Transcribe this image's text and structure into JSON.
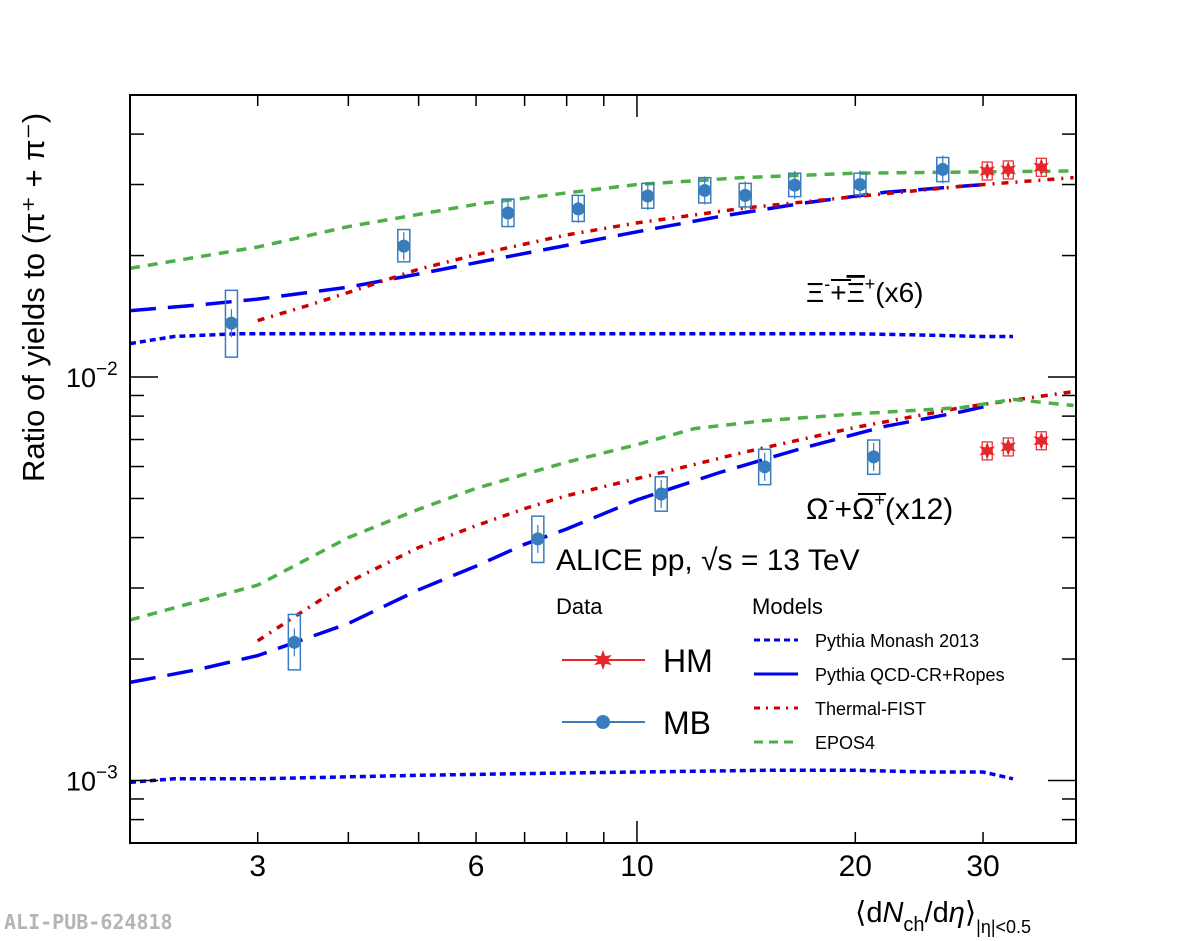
{
  "chart_data": {
    "type": "scatter",
    "title": "",
    "xlabel": "⟨dN_ch/dη⟩_|η|<0.5",
    "ylabel": "Ratio of yields to (π⁺ + π⁻)",
    "xscale": "log",
    "yscale": "log",
    "xlim": [
      2.0,
      40.3
    ],
    "ylim": [
      0.0007,
      0.05
    ],
    "grid": false,
    "x_ticks": [
      {
        "value": 3,
        "label": "3"
      },
      {
        "value": 6,
        "label": "6"
      },
      {
        "value": 10,
        "label": "10"
      },
      {
        "value": 20,
        "label": "20"
      },
      {
        "value": 30,
        "label": "30"
      }
    ],
    "x_minor_ticks": [
      4,
      5,
      7,
      8,
      9
    ],
    "y_ticks": [
      {
        "value": 0.01,
        "label": "10",
        "exp": "−2"
      },
      {
        "value": 0.001,
        "label": "10",
        "exp": "−3"
      }
    ],
    "y_minor_ticks": [
      0.0008,
      0.0009,
      0.002,
      0.003,
      0.004,
      0.005,
      0.006,
      0.007,
      0.008,
      0.009,
      0.02,
      0.03,
      0.04
    ],
    "annotations": {
      "experiment": "ALICE pp, √s = 13 TeV",
      "xi_label": {
        "base": "Ξ",
        "sup1": "-",
        "plus": "+",
        "bar": "Ξ",
        "sup2": "+",
        "scale": "(x6)"
      },
      "omega_label": {
        "base": "Ω",
        "sup1": "-",
        "plus": "+",
        "bar": "Ω",
        "sup2": "+",
        "scale": "(x12)"
      }
    },
    "legend": {
      "placement": "bottom-right",
      "data_header": "Data",
      "models_header": "Models",
      "data_entries": [
        {
          "name": "HM",
          "color": "#e8252a",
          "marker": "star"
        },
        {
          "name": "MB",
          "color": "#3a7dbf",
          "marker": "circle"
        }
      ],
      "model_entries": [
        {
          "name": "Pythia Monash 2013",
          "color": "#0000ee",
          "style": "short-dash"
        },
        {
          "name": "Pythia QCD-CR+Ropes",
          "color": "#0000ee",
          "style": "long-dash"
        },
        {
          "name": "Thermal-FIST",
          "color": "#cc0000",
          "style": "dash-dot"
        },
        {
          "name": "EPOS4",
          "color": "#4caf48",
          "style": "dash"
        }
      ]
    },
    "series": [
      {
        "name": "MB Ξ (x6)",
        "group": "xi",
        "color": "#3a7dbf",
        "marker": "circle",
        "x": [
          2.76,
          4.77,
          6.64,
          8.3,
          10.35,
          12.4,
          14.1,
          16.5,
          20.3,
          26.4
        ],
        "y": [
          0.0136,
          0.0211,
          0.0255,
          0.0261,
          0.0281,
          0.029,
          0.0282,
          0.0299,
          0.03,
          0.0327
        ],
        "syst_lo": [
          0.0112,
          0.0193,
          0.0236,
          0.0243,
          0.0262,
          0.027,
          0.0264,
          0.028,
          0.0283,
          0.0305
        ],
        "syst_hi": [
          0.0164,
          0.0232,
          0.0276,
          0.0282,
          0.0302,
          0.0312,
          0.0302,
          0.032,
          0.032,
          0.035
        ]
      },
      {
        "name": "HM Ξ (x6)",
        "group": "xi",
        "color": "#e8252a",
        "marker": "star",
        "x": [
          30.4,
          32.5,
          36.1
        ],
        "y": [
          0.0324,
          0.0326,
          0.0331
        ]
      },
      {
        "name": "MB Ω (x12)",
        "group": "omega",
        "color": "#3a7dbf",
        "marker": "circle",
        "x": [
          3.37,
          7.3,
          10.8,
          15.0,
          21.2
        ],
        "y": [
          0.0022,
          0.00397,
          0.00513,
          0.00599,
          0.00634
        ],
        "syst_lo": [
          0.00188,
          0.00347,
          0.00465,
          0.00541,
          0.00574
        ],
        "syst_hi": [
          0.00258,
          0.00452,
          0.00566,
          0.00662,
          0.00698
        ]
      },
      {
        "name": "HM Ω (x12)",
        "group": "omega",
        "color": "#e8252a",
        "marker": "star",
        "x": [
          30.4,
          32.5,
          36.1
        ],
        "y": [
          0.00656,
          0.00671,
          0.00695
        ]
      },
      {
        "name": "Pythia Monash 2013 Ξ",
        "model": "Pythia Monash 2013",
        "color": "#0000ee",
        "style": "short-dash",
        "x": [
          2.0,
          2.3,
          2.8,
          4,
          6,
          10,
          15,
          20,
          25,
          30,
          33
        ],
        "y": [
          0.0121,
          0.0126,
          0.0128,
          0.0128,
          0.0128,
          0.0128,
          0.0128,
          0.0128,
          0.0127,
          0.0126,
          0.0126
        ]
      },
      {
        "name": "Pythia QCD-CR+Ropes Ξ",
        "model": "Pythia QCD-CR+Ropes",
        "color": "#0000ee",
        "style": "long-dash",
        "x": [
          2.0,
          2.5,
          3.0,
          4.0,
          5.0,
          6.0,
          8.0,
          10,
          13,
          17,
          22,
          28,
          31
        ],
        "y": [
          0.0146,
          0.0151,
          0.0156,
          0.0167,
          0.018,
          0.0192,
          0.0212,
          0.0229,
          0.025,
          0.027,
          0.0287,
          0.0297,
          0.0301
        ]
      },
      {
        "name": "Thermal-FIST Ξ",
        "model": "Thermal-FIST",
        "color": "#cc0000",
        "style": "dash-dot",
        "x": [
          3.0,
          3.5,
          4.0,
          5.0,
          6.0,
          8.0,
          10,
          14,
          20,
          28,
          40
        ],
        "y": [
          0.0138,
          0.015,
          0.0162,
          0.0185,
          0.0201,
          0.0225,
          0.0241,
          0.0262,
          0.028,
          0.0297,
          0.0312
        ]
      },
      {
        "name": "EPOS4 Ξ",
        "model": "EPOS4",
        "color": "#4caf48",
        "style": "dash",
        "x": [
          2.0,
          3.0,
          4.0,
          5.0,
          6.0,
          8.0,
          10,
          14,
          20,
          28,
          40
        ],
        "y": [
          0.0186,
          0.021,
          0.0236,
          0.0253,
          0.0268,
          0.0286,
          0.03,
          0.0312,
          0.032,
          0.0322,
          0.0324
        ]
      },
      {
        "name": "Pythia Monash 2013 Ω",
        "model": "Pythia Monash 2013",
        "color": "#0000ee",
        "style": "short-dash",
        "x": [
          2.0,
          2.3,
          3.0,
          5.0,
          7.0,
          10,
          15,
          20,
          25,
          30,
          33
        ],
        "y": [
          0.00099,
          0.00101,
          0.00101,
          0.00103,
          0.00104,
          0.00105,
          0.00106,
          0.00106,
          0.00105,
          0.00105,
          0.00101
        ]
      },
      {
        "name": "Pythia QCD-CR+Ropes Ω",
        "model": "Pythia QCD-CR+Ropes",
        "color": "#0000ee",
        "style": "long-dash",
        "x": [
          2.0,
          2.5,
          3.0,
          4.0,
          5.0,
          6.0,
          7.0,
          8.0,
          10,
          13,
          17,
          22,
          28,
          31
        ],
        "y": [
          0.00175,
          0.00189,
          0.00204,
          0.00245,
          0.00297,
          0.0034,
          0.00385,
          0.0042,
          0.00496,
          0.0058,
          0.00668,
          0.00755,
          0.0082,
          0.00855
        ]
      },
      {
        "name": "Thermal-FIST Ω",
        "model": "Thermal-FIST",
        "color": "#cc0000",
        "style": "dash-dot",
        "x": [
          3.0,
          3.5,
          4.0,
          5.0,
          6.0,
          7.0,
          8.0,
          10,
          14,
          20,
          28,
          40
        ],
        "y": [
          0.00222,
          0.00266,
          0.0031,
          0.00378,
          0.00428,
          0.00472,
          0.00508,
          0.0056,
          0.0065,
          0.0075,
          0.0084,
          0.0092
        ]
      },
      {
        "name": "EPOS4 Ω",
        "model": "EPOS4",
        "color": "#4caf48",
        "style": "dash",
        "x": [
          2.0,
          3.0,
          4.0,
          5.0,
          6.0,
          8.0,
          10,
          12,
          15,
          20,
          28,
          33,
          40
        ],
        "y": [
          0.0025,
          0.00305,
          0.004,
          0.0047,
          0.0053,
          0.00615,
          0.0068,
          0.00745,
          0.0078,
          0.0081,
          0.0084,
          0.0088,
          0.0085
        ]
      }
    ]
  },
  "watermark": "ALI-PUB-624818"
}
